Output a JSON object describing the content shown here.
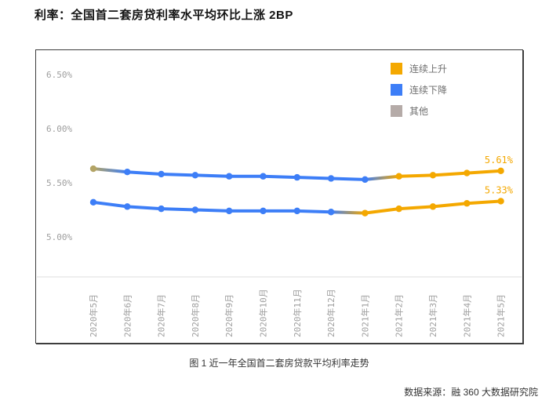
{
  "title": "利率：全国首二套房贷利率水平均环比上涨 2BP",
  "caption": "图 1 近一年全国首二套房贷款平均利率走势",
  "source": "数据来源：融 360 大数据研究院",
  "colors": {
    "gold": "#F4A800",
    "blue": "#3D7EF7",
    "gray": "#B5ABA8",
    "gray_gold": "#B3A465",
    "axis": "#DCDCDC",
    "tick_text": "#9E9E9E",
    "legend_text": "#6E6E6E"
  },
  "legend": {
    "items": [
      {
        "label": "连续上升",
        "color_key": "gold"
      },
      {
        "label": "连续下降",
        "color_key": "blue"
      },
      {
        "label": "其他",
        "color_key": "gray"
      }
    ]
  },
  "chart_data": {
    "type": "line",
    "title": "近一年全国首二套房贷款平均利率走势",
    "categories": [
      "2020年5月",
      "2020年6月",
      "2020年7月",
      "2020年8月",
      "2020年9月",
      "2020年10月",
      "2020年11月",
      "2020年12月",
      "2021年1月",
      "2021年2月",
      "2021年3月",
      "2021年4月",
      "2021年5月"
    ],
    "yticks": [
      {
        "label": "6.50%",
        "value": 6.5
      },
      {
        "label": "6.00%",
        "value": 6.0
      },
      {
        "label": "5.50%",
        "value": 5.5
      },
      {
        "label": "5.00%",
        "value": 5.0
      }
    ],
    "ylim": [
      4.75,
      6.75
    ],
    "grid": false,
    "legend_position": "top-right",
    "series": [
      {
        "name": "upper-line-second-home",
        "end_label": "5.61%",
        "values": [
          5.63,
          5.6,
          5.58,
          5.57,
          5.56,
          5.56,
          5.55,
          5.54,
          5.53,
          5.56,
          5.57,
          5.59,
          5.61
        ],
        "point_colors": [
          "gray_gold",
          "blue",
          "blue",
          "blue",
          "blue",
          "blue",
          "blue",
          "blue",
          "blue",
          "gold",
          "gold",
          "gold",
          "gold"
        ]
      },
      {
        "name": "lower-line-first-home",
        "end_label": "5.33%",
        "values": [
          5.32,
          5.28,
          5.26,
          5.25,
          5.24,
          5.24,
          5.24,
          5.23,
          5.22,
          5.26,
          5.28,
          5.31,
          5.33
        ],
        "point_colors": [
          "blue",
          "blue",
          "blue",
          "blue",
          "blue",
          "blue",
          "blue",
          "blue",
          "gold",
          "gold",
          "gold",
          "gold",
          "gold"
        ]
      }
    ]
  }
}
